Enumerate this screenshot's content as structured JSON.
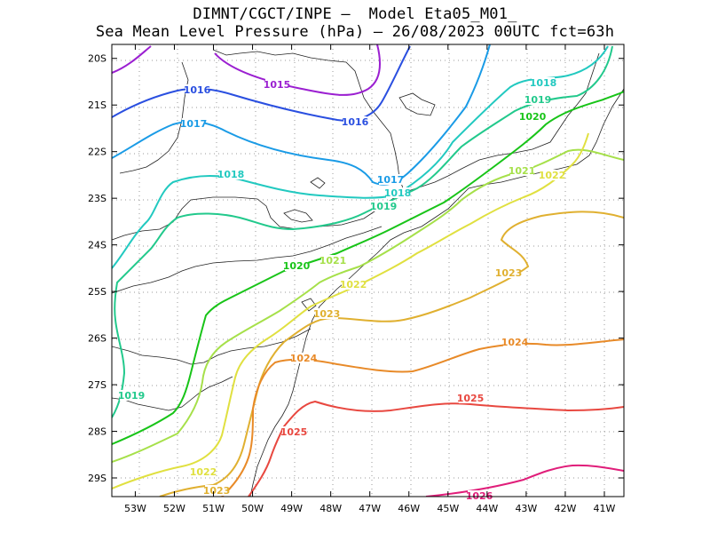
{
  "title_line1": "DIMNT/CGCT/INPE –  Model Eta05_M01_",
  "title_line2": "Sea Mean Level Pressure (hPa) – 26/08/2023 00UTC fct=63h",
  "axes": {
    "lon_labels": [
      "53W",
      "52W",
      "51W",
      "50W",
      "49W",
      "48W",
      "47W",
      "46W",
      "45W",
      "44W",
      "43W",
      "42W",
      "41W"
    ],
    "lat_labels": [
      "20S",
      "21S",
      "22S",
      "23S",
      "24S",
      "25S",
      "26S",
      "27S",
      "28S",
      "29S"
    ],
    "lon_range": [
      -53.6,
      -40.5
    ],
    "lat_range": [
      -29.4,
      -19.7
    ]
  },
  "isobars": [
    {
      "value": "1015",
      "color": "#9b1fd1",
      "label": "1015"
    },
    {
      "value": "1016",
      "color": "#2a4fe0",
      "label": "1016"
    },
    {
      "value": "1017",
      "color": "#1a9be6",
      "label": "1017"
    },
    {
      "value": "1018",
      "color": "#22c9c0",
      "label": "1018"
    },
    {
      "value": "1019",
      "color": "#22c98c",
      "label": "1019"
    },
    {
      "value": "1020",
      "color": "#18c418",
      "label": "1020"
    },
    {
      "value": "1021",
      "color": "#a6e04a",
      "label": "1021"
    },
    {
      "value": "1022",
      "color": "#e0e040",
      "label": "1022"
    },
    {
      "value": "1023",
      "color": "#e0b030",
      "label": "1023"
    },
    {
      "value": "1024",
      "color": "#e88a28",
      "label": "1024"
    },
    {
      "value": "1025",
      "color": "#e84840",
      "label": "1025"
    },
    {
      "value": "1026",
      "color": "#e01e7a",
      "label": "1026"
    }
  ]
}
